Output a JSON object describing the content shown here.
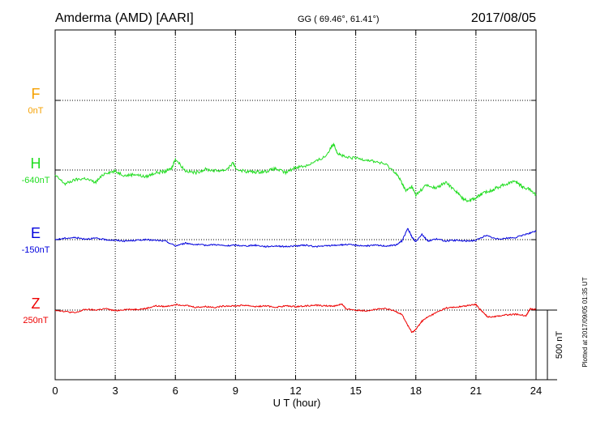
{
  "header": {
    "station": "Amderma (AMD)  [AARI]",
    "coords": "GG ( 69.46°,  61.41°)",
    "date": "2017/08/05"
  },
  "footer_note": "Plotted at 2017/09/05 01:35 UT",
  "scale_label": "500 nT",
  "chart_data": {
    "type": "line",
    "xlabel": "U T (hour)",
    "xlim": [
      0,
      24
    ],
    "x_ticks": [
      "0",
      "3",
      "6",
      "9",
      "12",
      "15",
      "18",
      "21",
      "24"
    ],
    "grid": true,
    "scale_bar_nT": 500,
    "series": [
      {
        "name": "F",
        "baseline_label": "0nT",
        "color": "#f5a000",
        "hours": [],
        "values": []
      },
      {
        "name": "H",
        "baseline_label": "-640nT",
        "color": "#22dd22",
        "hours": [
          0,
          0.5,
          1,
          1.5,
          2,
          2.5,
          3,
          3.5,
          4,
          4.5,
          5,
          5.5,
          5.8,
          6,
          6.5,
          7,
          7.5,
          8,
          8.5,
          8.9,
          9,
          9.5,
          10,
          10.5,
          11,
          11.5,
          12,
          12.5,
          13,
          13.5,
          13.9,
          14.1,
          14.5,
          15,
          15.5,
          16,
          16.5,
          17,
          17.3,
          17.5,
          17.8,
          18,
          18.5,
          19,
          19.5,
          20,
          20.3,
          20.6,
          21,
          21.3,
          21.7,
          22,
          22.5,
          23,
          23.3,
          23.7,
          24
        ],
        "values": [
          -40,
          -100,
          -70,
          -60,
          -90,
          -20,
          -10,
          -40,
          -30,
          -50,
          -20,
          -10,
          10,
          80,
          -5,
          -20,
          5,
          -5,
          0,
          50,
          10,
          -10,
          -15,
          -10,
          10,
          -20,
          20,
          30,
          60,
          100,
          190,
          120,
          90,
          85,
          75,
          60,
          40,
          -20,
          -90,
          -150,
          -120,
          -180,
          -110,
          -130,
          -90,
          -150,
          -200,
          -220,
          -200,
          -170,
          -150,
          -130,
          -100,
          -80,
          -120,
          -140,
          -180
        ]
      },
      {
        "name": "E",
        "baseline_label": "-150nT",
        "color": "#0000dd",
        "hours": [
          0,
          0.5,
          1,
          1.5,
          2,
          2.5,
          3,
          3.5,
          4,
          4.5,
          5,
          5.5,
          6,
          6.5,
          7,
          7.5,
          8,
          8.5,
          9,
          9.5,
          10,
          10.5,
          11,
          11.5,
          12,
          12.5,
          13,
          13.5,
          14,
          14.5,
          15,
          15.5,
          16,
          16.5,
          17,
          17.3,
          17.6,
          17.8,
          18,
          18.3,
          18.6,
          19,
          19.5,
          20,
          20.5,
          21,
          21.5,
          22,
          22.5,
          23,
          23.5,
          24
        ],
        "values": [
          0,
          10,
          15,
          5,
          10,
          0,
          -5,
          -10,
          -5,
          0,
          -5,
          -10,
          -45,
          -25,
          -35,
          -40,
          -35,
          -45,
          -40,
          -45,
          -40,
          -50,
          -45,
          -50,
          -45,
          -40,
          -50,
          -45,
          -40,
          -35,
          -40,
          -45,
          -40,
          -45,
          -40,
          -10,
          80,
          20,
          -15,
          40,
          -10,
          5,
          -10,
          -5,
          -10,
          -5,
          30,
          5,
          10,
          15,
          40,
          60
        ]
      },
      {
        "name": "Z",
        "baseline_label": "250nT",
        "color": "#ee0000",
        "hours": [
          0,
          0.5,
          1,
          1.5,
          2,
          2.5,
          3,
          3.5,
          4,
          4.5,
          5,
          5.5,
          6,
          6.5,
          7,
          7.5,
          8,
          8.5,
          9,
          9.5,
          10,
          10.5,
          11,
          11.5,
          12,
          12.5,
          13,
          13.5,
          14,
          14.3,
          14.5,
          15,
          15.5,
          16,
          16.5,
          17,
          17.3,
          17.6,
          17.8,
          18,
          18.3,
          18.6,
          19,
          19.5,
          20,
          20.5,
          21,
          21.3,
          21.6,
          22,
          22.5,
          23,
          23.5,
          23.7,
          24
        ],
        "values": [
          0,
          -10,
          -20,
          5,
          0,
          10,
          -5,
          5,
          5,
          10,
          30,
          25,
          40,
          35,
          20,
          25,
          20,
          30,
          30,
          35,
          25,
          30,
          20,
          30,
          25,
          30,
          35,
          30,
          30,
          45,
          10,
          0,
          -5,
          5,
          10,
          -10,
          -30,
          -110,
          -160,
          -140,
          -80,
          -50,
          -20,
          15,
          20,
          30,
          40,
          -10,
          -50,
          -45,
          -35,
          -30,
          -40,
          10,
          5
        ]
      }
    ]
  }
}
